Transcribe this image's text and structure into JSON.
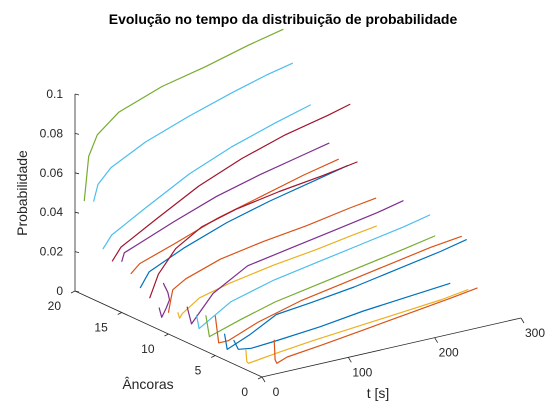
{
  "chart_data": {
    "type": "line",
    "title": "Evolução no tempo da distribuição de probabilidade",
    "xlabel": "t [s]",
    "ylabel": "Âncoras",
    "zlabel": "Probabilidade",
    "xlim": [
      0,
      300
    ],
    "ylim": [
      0,
      20
    ],
    "zlim": [
      0,
      0.1
    ],
    "xticks": [
      "0",
      "100",
      "200",
      "300"
    ],
    "yticks": [
      "0",
      "5",
      "10",
      "15",
      "20"
    ],
    "zticks": [
      "0",
      "0.02",
      "0.04",
      "0.06",
      "0.08",
      "0.1"
    ],
    "grid": false,
    "colors": [
      "#0072BD",
      "#D95319",
      "#EDB120",
      "#7E2F8E",
      "#77AC30",
      "#4DBEEE",
      "#A2142F"
    ],
    "series": [
      {
        "anchor": 1,
        "color": "#D95319",
        "points": [
          [
            25,
            0.014
          ],
          [
            26,
            0.004
          ],
          [
            28,
            0.002
          ],
          [
            40,
            0.004
          ],
          [
            80,
            0.006
          ],
          [
            130,
            0.009
          ],
          [
            180,
            0.012
          ],
          [
            230,
            0.015
          ],
          [
            260,
            0.017
          ]
        ]
      },
      {
        "anchor": 2,
        "color": "#EDB120",
        "points": [
          [
            3,
            0.009
          ],
          [
            4,
            0.003
          ],
          [
            6,
            0.002
          ],
          [
            40,
            0.004
          ],
          [
            80,
            0.006
          ],
          [
            130,
            0.008
          ],
          [
            180,
            0.01
          ],
          [
            230,
            0.012
          ],
          [
            260,
            0.014
          ]
        ]
      },
      {
        "anchor": 3,
        "color": "#0072BD",
        "points": [
          [
            0,
            0.012
          ],
          [
            5,
            0.007
          ],
          [
            20,
            0.006
          ],
          [
            50,
            0.007
          ],
          [
            100,
            0.009
          ],
          [
            150,
            0.012
          ],
          [
            200,
            0.014
          ],
          [
            250,
            0.016
          ]
        ]
      },
      {
        "anchor": 4,
        "color": "#0072BD",
        "points": [
          [
            0,
            0.013
          ],
          [
            3,
            0.005
          ],
          [
            30,
            0.01
          ],
          [
            60,
            0.017
          ],
          [
            100,
            0.019
          ],
          [
            150,
            0.022
          ],
          [
            200,
            0.026
          ],
          [
            250,
            0.03
          ],
          [
            280,
            0.033
          ]
        ]
      },
      {
        "anchor": 5,
        "color": "#D95319",
        "points": [
          [
            0,
            0.02
          ],
          [
            4,
            0.006
          ],
          [
            15,
            0.006
          ],
          [
            50,
            0.012
          ],
          [
            100,
            0.018
          ],
          [
            150,
            0.022
          ],
          [
            200,
            0.026
          ],
          [
            250,
            0.03
          ],
          [
            285,
            0.032
          ]
        ]
      },
      {
        "anchor": 6,
        "color": "#77AC30",
        "points": [
          [
            0,
            0.018
          ],
          [
            4,
            0.007
          ],
          [
            40,
            0.012
          ],
          [
            80,
            0.017
          ],
          [
            130,
            0.021
          ],
          [
            180,
            0.025
          ],
          [
            230,
            0.029
          ],
          [
            265,
            0.032
          ]
        ]
      },
      {
        "anchor": 7,
        "color": "#4DBEEE",
        "points": [
          [
            0,
            0.016
          ],
          [
            3,
            0.009
          ],
          [
            40,
            0.019
          ],
          [
            90,
            0.025
          ],
          [
            140,
            0.029
          ],
          [
            190,
            0.033
          ],
          [
            240,
            0.037
          ],
          [
            270,
            0.04
          ]
        ]
      },
      {
        "anchor": 8,
        "color": "#7E2F8E",
        "points": [
          [
            0,
            0.018
          ],
          [
            5,
            0.009
          ],
          [
            30,
            0.022
          ],
          [
            70,
            0.032
          ],
          [
            120,
            0.036
          ],
          [
            170,
            0.04
          ],
          [
            220,
            0.044
          ],
          [
            250,
            0.047
          ]
        ]
      },
      {
        "anchor": 9,
        "color": "#EDB120",
        "points": [
          [
            0,
            0.013
          ],
          [
            2,
            0.01
          ],
          [
            5,
            0.012
          ],
          [
            25,
            0.018
          ],
          [
            60,
            0.022
          ],
          [
            110,
            0.026
          ],
          [
            160,
            0.029
          ],
          [
            200,
            0.032
          ],
          [
            230,
            0.034
          ]
        ]
      },
      {
        "anchor": 10,
        "color": "#D95319",
        "points": [
          [
            0,
            0.011
          ],
          [
            3,
            0.018
          ],
          [
            5,
            0.022
          ],
          [
            20,
            0.026
          ],
          [
            60,
            0.032
          ],
          [
            110,
            0.036
          ],
          [
            160,
            0.039
          ],
          [
            210,
            0.043
          ],
          [
            240,
            0.045
          ]
        ]
      },
      {
        "anchor": 11,
        "color": "#7E2F8E",
        "points": [
          [
            0,
            0.011
          ],
          [
            3,
            0.006
          ],
          [
            8,
            0.01
          ],
          [
            12,
            0.014
          ],
          [
            10,
            0.018
          ],
          [
            6,
            0.022
          ],
          [
            5,
            0.023
          ]
        ]
      },
      {
        "anchor": 12,
        "color": "#A2142F",
        "points": [
          [
            0,
            0.014
          ],
          [
            10,
            0.025
          ],
          [
            30,
            0.036
          ],
          [
            60,
            0.044
          ],
          [
            100,
            0.049
          ],
          [
            150,
            0.053
          ],
          [
            200,
            0.056
          ],
          [
            240,
            0.059
          ]
        ]
      },
      {
        "anchor": 13,
        "color": "#0072BD",
        "points": [
          [
            0,
            0.017
          ],
          [
            10,
            0.024
          ],
          [
            50,
            0.032
          ],
          [
            100,
            0.04
          ],
          [
            150,
            0.046
          ],
          [
            200,
            0.051
          ],
          [
            240,
            0.055
          ]
        ]
      },
      {
        "anchor": 14,
        "color": "#D95319",
        "points": [
          [
            0,
            0.022
          ],
          [
            10,
            0.026
          ],
          [
            50,
            0.032
          ],
          [
            100,
            0.04
          ],
          [
            150,
            0.046
          ],
          [
            200,
            0.052
          ],
          [
            240,
            0.056
          ]
        ]
      },
      {
        "anchor": 15,
        "color": "#7E2F8E",
        "points": [
          [
            0,
            0.026
          ],
          [
            3,
            0.03
          ],
          [
            20,
            0.033
          ],
          [
            60,
            0.04
          ],
          [
            110,
            0.048
          ],
          [
            160,
            0.054
          ],
          [
            210,
            0.059
          ],
          [
            240,
            0.062
          ]
        ]
      },
      {
        "anchor": 16,
        "color": "#A2142F",
        "points": [
          [
            0,
            0.024
          ],
          [
            10,
            0.03
          ],
          [
            50,
            0.04
          ],
          [
            100,
            0.052
          ],
          [
            150,
            0.061
          ],
          [
            200,
            0.068
          ],
          [
            250,
            0.073
          ],
          [
            275,
            0.076
          ]
        ]
      },
      {
        "anchor": 17,
        "color": "#4DBEEE",
        "points": [
          [
            0,
            0.028
          ],
          [
            10,
            0.034
          ],
          [
            50,
            0.044
          ],
          [
            100,
            0.056
          ],
          [
            150,
            0.065
          ],
          [
            200,
            0.072
          ],
          [
            240,
            0.077
          ]
        ]
      },
      {
        "anchor": 18,
        "color": "#4DBEEE",
        "points": [
          [
            0,
            0.05
          ],
          [
            5,
            0.058
          ],
          [
            20,
            0.065
          ],
          [
            60,
            0.074
          ],
          [
            110,
            0.082
          ],
          [
            160,
            0.089
          ],
          [
            200,
            0.094
          ],
          [
            230,
            0.097
          ]
        ]
      },
      {
        "anchor": 19,
        "color": "#77AC30",
        "points": [
          [
            0,
            0.048
          ],
          [
            5,
            0.07
          ],
          [
            15,
            0.08
          ],
          [
            40,
            0.089
          ],
          [
            90,
            0.097
          ],
          [
            140,
            0.102
          ],
          [
            190,
            0.108
          ],
          [
            230,
            0.112
          ]
        ]
      }
    ]
  }
}
